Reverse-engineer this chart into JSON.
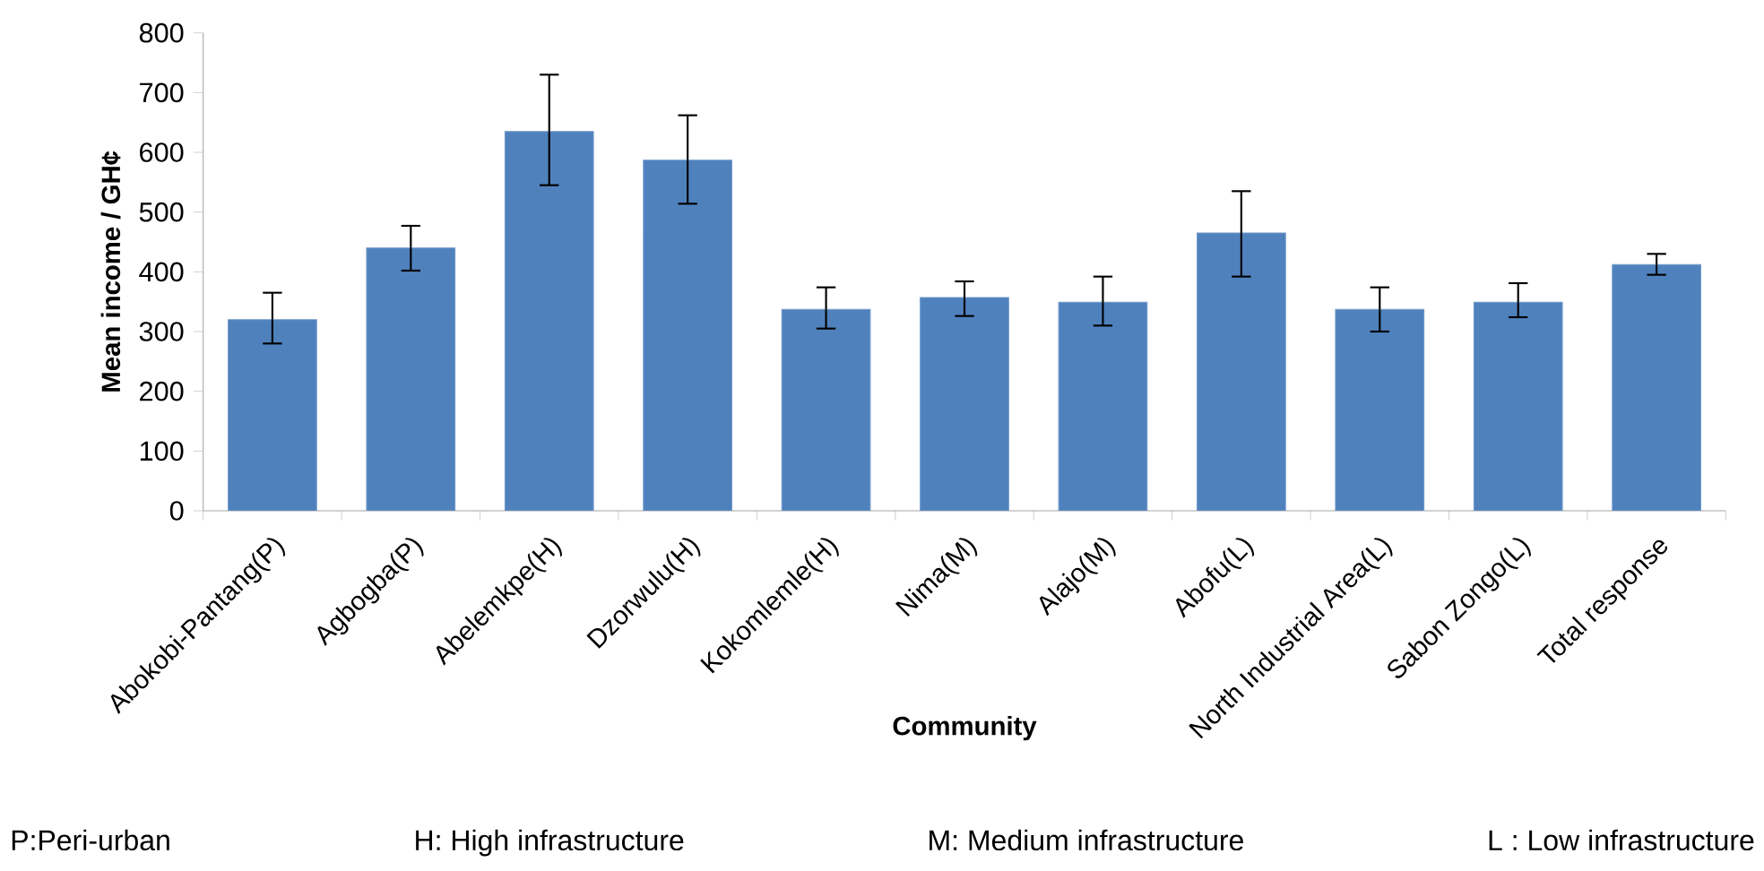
{
  "chart_data": {
    "type": "bar",
    "xlabel": "Community",
    "ylabel": "Mean income / GH¢",
    "categories": [
      "Abokobi-Pantang(P)",
      "Agbogba(P)",
      "Abelemkpe(H)",
      "Dzorwulu(H)",
      "Kokomlemle(H)",
      "Nima(M)",
      "Alajo(M)",
      "Abofu(L)",
      "North Industrial Area(L)",
      "Sabon Zongo(L)",
      "Total response"
    ],
    "values": [
      320,
      440,
      635,
      587,
      337,
      357,
      349,
      465,
      337,
      349,
      412
    ],
    "errors": [
      [
        280,
        365
      ],
      [
        402,
        477
      ],
      [
        545,
        730
      ],
      [
        514,
        662
      ],
      [
        305,
        374
      ],
      [
        326,
        384
      ],
      [
        310,
        392
      ],
      [
        392,
        535
      ],
      [
        300,
        374
      ],
      [
        324,
        381
      ],
      [
        395,
        430
      ]
    ],
    "color": "#4f81bd",
    "ylim": [
      0,
      800
    ],
    "yticks": [
      0,
      100,
      200,
      300,
      400,
      500,
      600,
      700,
      800
    ],
    "grid": false,
    "annotations": [
      "P:Peri-urban",
      "H: High infrastructure",
      "M: Medium infrastructure",
      "L : Low infrastructure"
    ]
  }
}
